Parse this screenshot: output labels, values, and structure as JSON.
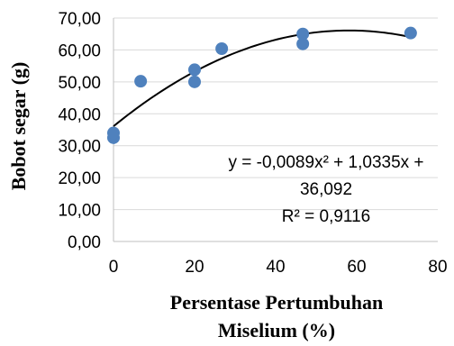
{
  "chart_data": {
    "type": "scatter",
    "xlabel_lines": [
      "Persentase Pertumbuhan",
      "Miselium (%)"
    ],
    "ylabel": "Bobot segar (g)",
    "xlim": [
      0,
      80
    ],
    "ylim": [
      0,
      70
    ],
    "x_ticks": [
      "0",
      "20",
      "40",
      "60",
      "80"
    ],
    "y_ticks": [
      "0,00",
      "10,00",
      "20,00",
      "30,00",
      "40,00",
      "50,00",
      "60,00",
      "70,00"
    ],
    "grid": "horizontal",
    "points": [
      {
        "x": 0,
        "y": 32.5
      },
      {
        "x": 0,
        "y": 34.0
      },
      {
        "x": 6.7,
        "y": 50.2
      },
      {
        "x": 20,
        "y": 50.0
      },
      {
        "x": 20,
        "y": 53.8
      },
      {
        "x": 26.7,
        "y": 60.4
      },
      {
        "x": 46.7,
        "y": 61.9
      },
      {
        "x": 46.7,
        "y": 65.0
      },
      {
        "x": 73.3,
        "y": 65.3
      }
    ],
    "point_color": "#4f81bd",
    "trendline": {
      "type": "polynomial",
      "a": -0.0089,
      "b": 1.0335,
      "c": 36.092,
      "x_range": [
        0,
        73.3
      ]
    },
    "equation_lines": [
      "y = -0,0089x² + 1,0335x +",
      "36,092",
      "R² = 0,9116"
    ]
  }
}
